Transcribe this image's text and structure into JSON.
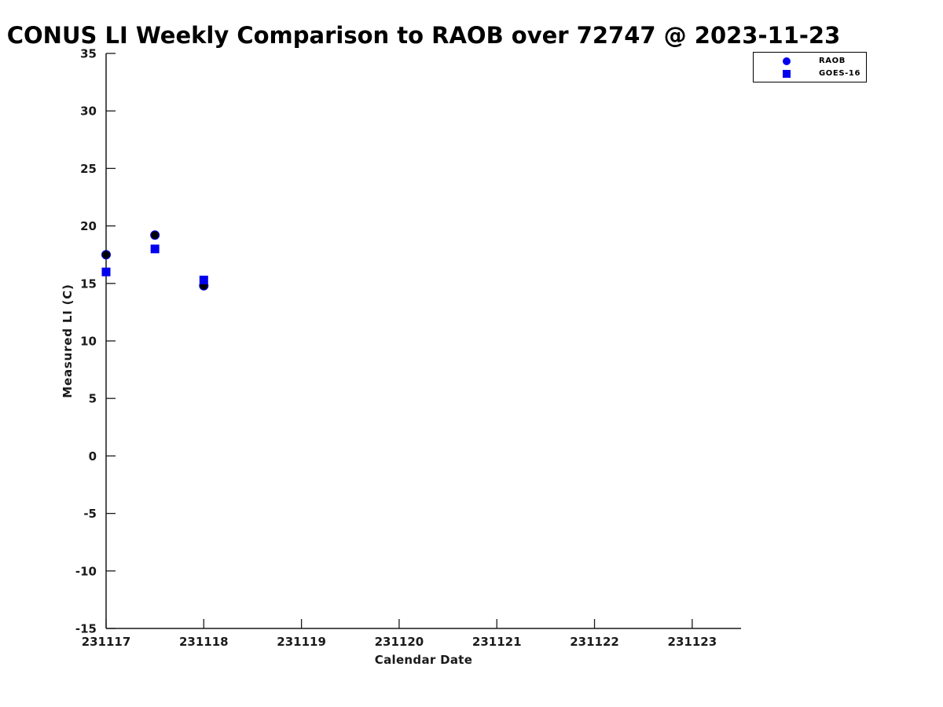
{
  "chart_data": {
    "type": "scatter",
    "title": "CONUS LI Weekly Comparison to RAOB over 72747 @ 2023-11-23",
    "xlabel": "Calendar Date",
    "ylabel": "Measured LI (C)",
    "xlim": [
      231117,
      231123.5
    ],
    "ylim": [
      -15,
      35
    ],
    "x_ticks": [
      "231117",
      "231118",
      "231119",
      "231120",
      "231121",
      "231122",
      "231123"
    ],
    "x_tick_values": [
      231117,
      231118,
      231119,
      231120,
      231121,
      231122,
      231123
    ],
    "y_ticks": [
      35,
      30,
      25,
      20,
      15,
      10,
      5,
      0,
      -5,
      -10,
      -15
    ],
    "grid": false,
    "legend_position": "top-right-outside",
    "series": [
      {
        "name": "RAOB",
        "marker": "circle",
        "marker_fill": "#000000",
        "marker_edge": "#0000EE",
        "legend_color": "#0000EE",
        "points": [
          [
            231117,
            17.5
          ],
          [
            231117.5,
            19.2
          ],
          [
            231118,
            14.8
          ]
        ]
      },
      {
        "name": "GOES-16",
        "marker": "square",
        "marker_fill": "#0000EE",
        "marker_edge": "#0000EE",
        "legend_color": "#0000EE",
        "points": [
          [
            231117,
            16.0
          ],
          [
            231117.5,
            18.0
          ],
          [
            231118,
            15.3
          ]
        ]
      }
    ]
  },
  "colors": {
    "axis": "#1a1a1a",
    "title": "#000000",
    "background": "#ffffff",
    "legend_border": "#000000"
  }
}
